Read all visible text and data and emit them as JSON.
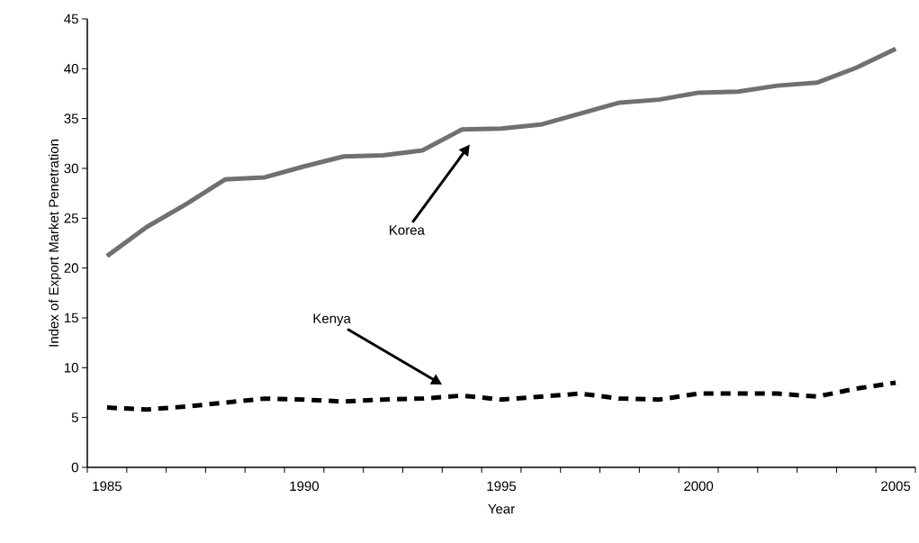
{
  "chart_data": {
    "type": "line",
    "xlabel": "Year",
    "ylabel": "Index of Export Market Penetration",
    "x": [
      1985,
      1986,
      1987,
      1988,
      1989,
      1990,
      1991,
      1992,
      1993,
      1994,
      1995,
      1996,
      1997,
      1998,
      1999,
      2000,
      2001,
      2002,
      2003,
      2004,
      2005
    ],
    "series": [
      {
        "color": "#707070",
        "line_style": "solid",
        "values": [
          21.2,
          24.1,
          26.4,
          28.9,
          29.1,
          30.2,
          31.2,
          31.3,
          31.8,
          33.9,
          34.0,
          34.4,
          35.5,
          36.6,
          36.9,
          37.6,
          37.7,
          38.3,
          38.6,
          40.1,
          42.0
        ]
      },
      {
        "color": "#000000",
        "line_style": "dashed",
        "values": [
          6.0,
          5.8,
          6.1,
          6.5,
          6.9,
          6.8,
          6.6,
          6.8,
          6.9,
          7.2,
          6.8,
          7.1,
          7.4,
          6.9,
          6.8,
          7.4,
          7.4,
          7.4,
          7.1,
          7.9,
          8.5
        ]
      }
    ],
    "annotations": [
      "Korea",
      "Kenya"
    ],
    "xlim": [
      1984.5,
      2005.5
    ],
    "xticks": [
      {
        "value": 1984.5,
        "label": null
      },
      {
        "value": 1985.5,
        "label": null
      },
      {
        "value": 1986.5,
        "label": null
      },
      {
        "value": 1987.5,
        "label": null
      },
      {
        "value": 1988.5,
        "label": null
      },
      {
        "value": 1989.5,
        "label": null
      },
      {
        "value": 1990.5,
        "label": null
      },
      {
        "value": 1991.5,
        "label": null
      },
      {
        "value": 1992.5,
        "label": null
      },
      {
        "value": 1993.5,
        "label": null
      },
      {
        "value": 1994.5,
        "label": null
      },
      {
        "value": 1995.5,
        "label": null
      },
      {
        "value": 1996.5,
        "label": null
      },
      {
        "value": 1997.5,
        "label": null
      },
      {
        "value": 1998.5,
        "label": null
      },
      {
        "value": 1999.5,
        "label": null
      },
      {
        "value": 2000.5,
        "label": null
      },
      {
        "value": 2001.5,
        "label": null
      },
      {
        "value": 2002.5,
        "label": null
      },
      {
        "value": 2003.5,
        "label": null
      },
      {
        "value": 2004.5,
        "label": null
      },
      {
        "value": 2005.5,
        "label": null
      },
      1985,
      1990,
      1995,
      2000,
      2005
    ],
    "ylim": [
      0,
      45
    ],
    "yticks": [
      0,
      5,
      10,
      15,
      20,
      25,
      30,
      35,
      40,
      45
    ],
    "grid": false,
    "marker": "none"
  }
}
